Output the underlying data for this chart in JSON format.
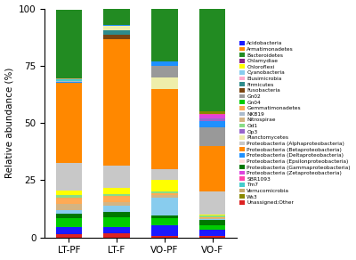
{
  "categories": [
    "LT-PF",
    "LT-F",
    "VO-PF",
    "VO-F"
  ],
  "stack": [
    {
      "label": "Unassigned;Other",
      "color": "#dd2222",
      "values": [
        1.5,
        2.0,
        0.5,
        0.5
      ]
    },
    {
      "label": "Acidobacteria",
      "color": "#1a1aff",
      "values": [
        3.0,
        2.5,
        5.0,
        3.0
      ]
    },
    {
      "label": "Gn04",
      "color": "#00cc00",
      "values": [
        4.0,
        4.5,
        3.0,
        2.0
      ]
    },
    {
      "label": "Proteobacteria (Gammaproteobacteria)",
      "color": "#007700",
      "values": [
        2.0,
        2.0,
        1.0,
        2.0
      ]
    },
    {
      "label": "Cyanobacteria",
      "color": "#88ccee",
      "values": [
        1.5,
        3.0,
        8.0,
        0.5
      ]
    },
    {
      "label": "Nitrospirae",
      "color": "#d4b483",
      "values": [
        2.5,
        1.5,
        1.0,
        0.5
      ]
    },
    {
      "label": "Gemmatimonadetes",
      "color": "#ffaa55",
      "values": [
        3.0,
        2.5,
        1.0,
        0.5
      ]
    },
    {
      "label": "Od1",
      "color": "#88dd88",
      "values": [
        1.0,
        1.0,
        0.5,
        0.5
      ]
    },
    {
      "label": "Chloroflexi",
      "color": "#ffff00",
      "values": [
        2.0,
        2.5,
        5.0,
        0.5
      ]
    },
    {
      "label": "Proteobacteria (Alphaproteobacteria)",
      "color": "#c8c8c8",
      "values": [
        12.0,
        10.0,
        5.0,
        10.0
      ]
    },
    {
      "label": "Proteobacteria (Betaproteobacteria)",
      "color": "#ff8800",
      "values": [
        35.0,
        55.0,
        35.0,
        20.0
      ]
    },
    {
      "label": "Fusobacteria",
      "color": "#7a4410",
      "values": [
        0.0,
        2.0,
        0.0,
        0.0
      ]
    },
    {
      "label": "Firmicutes",
      "color": "#2e8b8b",
      "values": [
        0.0,
        2.0,
        0.0,
        0.0
      ]
    },
    {
      "label": "Planctomycetes",
      "color": "#eeeeaa",
      "values": [
        0.0,
        2.0,
        5.0,
        0.0
      ]
    },
    {
      "label": "Gn02",
      "color": "#999999",
      "values": [
        0.0,
        0.0,
        5.0,
        8.0
      ]
    },
    {
      "label": "Proteobacteria (Deltaproteobacteria)",
      "color": "#1e90ff",
      "values": [
        0.5,
        0.5,
        2.0,
        3.0
      ]
    },
    {
      "label": "NKB19",
      "color": "#aabbcc",
      "values": [
        0.5,
        0.0,
        0.0,
        0.0
      ]
    },
    {
      "label": "Tm7",
      "color": "#44cccc",
      "values": [
        0.5,
        0.0,
        0.0,
        0.0
      ]
    },
    {
      "label": "Op3",
      "color": "#9966cc",
      "values": [
        0.0,
        0.0,
        0.0,
        1.0
      ]
    },
    {
      "label": "Proteobacteria (Zetaproteobacteria)",
      "color": "#dd44dd",
      "values": [
        0.0,
        0.0,
        0.0,
        1.5
      ]
    },
    {
      "label": "SBR1093",
      "color": "#ff44aa",
      "values": [
        0.0,
        0.0,
        0.0,
        0.5
      ]
    },
    {
      "label": "Ws3",
      "color": "#888800",
      "values": [
        0.0,
        0.0,
        0.0,
        1.0
      ]
    },
    {
      "label": "Proteobacteria (Epsilonproteobacteria)",
      "color": "#ffdddd",
      "values": [
        0.0,
        0.0,
        0.0,
        0.0
      ]
    },
    {
      "label": "Chlamydiae",
      "color": "#882288",
      "values": [
        0.0,
        0.0,
        0.0,
        0.0
      ]
    },
    {
      "label": "Elusimicrobia",
      "color": "#ffaacc",
      "values": [
        0.0,
        0.0,
        0.0,
        0.0
      ]
    },
    {
      "label": "Proteobacteria (Deltaproteobacteria)_B",
      "color": "#1e90ff",
      "values": [
        0.0,
        0.0,
        0.0,
        0.0
      ]
    },
    {
      "label": "Verrucomicrobia",
      "color": "#c8a96e",
      "values": [
        0.5,
        0.0,
        0.0,
        0.0
      ]
    },
    {
      "label": "Bacteroidetes",
      "color": "#228b22",
      "values": [
        30.0,
        7.0,
        23.0,
        46.0
      ]
    },
    {
      "label": "Armatimonadetes",
      "color": "#ff8800",
      "values": [
        0.0,
        0.0,
        0.0,
        0.0
      ]
    }
  ],
  "legend": [
    {
      "label": "Acidobacteria",
      "color": "#1a1aff"
    },
    {
      "label": "Armatimonadetes",
      "color": "#ff8800"
    },
    {
      "label": "Bacteroidetes",
      "color": "#228b22"
    },
    {
      "label": "Chlamydiae",
      "color": "#882288"
    },
    {
      "label": "Chloroflexi",
      "color": "#ffff00"
    },
    {
      "label": "Cyanobacteria",
      "color": "#88ccee"
    },
    {
      "label": "Elusimicrobia",
      "color": "#ffaacc"
    },
    {
      "label": "Firmicutes",
      "color": "#2e8b8b"
    },
    {
      "label": "Fusobacteria",
      "color": "#7a4410"
    },
    {
      "label": "Gn02",
      "color": "#999999"
    },
    {
      "label": "Gn04",
      "color": "#00cc00"
    },
    {
      "label": "Gemmatimonadetes",
      "color": "#ffaa55"
    },
    {
      "label": "NKB19",
      "color": "#aabbcc"
    },
    {
      "label": "Nitrospirae",
      "color": "#d4b483"
    },
    {
      "label": "Od1",
      "color": "#88dd88"
    },
    {
      "label": "Op3",
      "color": "#9966cc"
    },
    {
      "label": "Planctomycetes",
      "color": "#eeeeaa"
    },
    {
      "label": "Proteobacteria (Alphaproteobacteria)",
      "color": "#c8c8c8"
    },
    {
      "label": "Proteobacteria (Betaproteobacteria)",
      "color": "#ff8800"
    },
    {
      "label": "Proteobacteria (Deltaproteobacteria)",
      "color": "#1e90ff"
    },
    {
      "label": "Proteobacteria (Epsilonproteobacteria)",
      "color": "#ffdddd"
    },
    {
      "label": "Proteobacteria (Gammaproteobacteria)",
      "color": "#007700"
    },
    {
      "label": "Proteobacteria (Zetaproteobacteria)",
      "color": "#dd44dd"
    },
    {
      "label": "SBR1093",
      "color": "#ff44aa"
    },
    {
      "label": "Tm7",
      "color": "#44cccc"
    },
    {
      "label": "Verrucomicrobia",
      "color": "#c8a96e"
    },
    {
      "label": "Ws3",
      "color": "#888800"
    },
    {
      "label": "Unassigned;Other",
      "color": "#dd2222"
    }
  ],
  "ylabel": "Relative abundance (%)",
  "ylim": [
    0,
    100
  ],
  "yticks": [
    0,
    25,
    50,
    75,
    100
  ],
  "bar_width": 0.55,
  "figsize": [
    4.0,
    2.92
  ],
  "dpi": 100
}
